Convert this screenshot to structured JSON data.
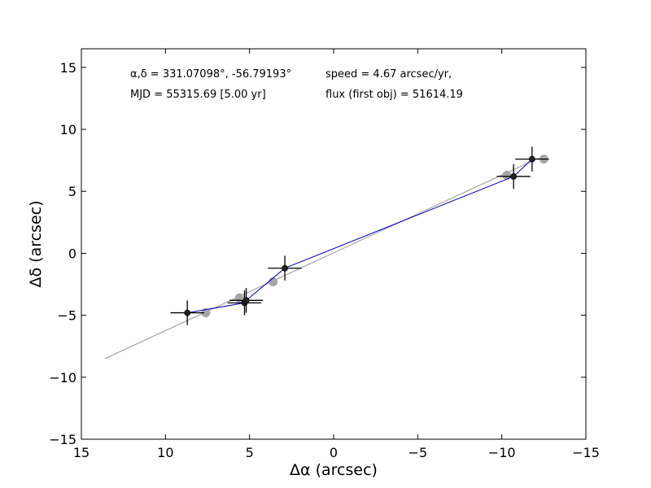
{
  "chart_data": {
    "type": "scatter",
    "title": "",
    "xlabel": "Δα (arcsec)",
    "ylabel": "Δδ (arcsec)",
    "xlim": [
      15,
      -15
    ],
    "ylim": [
      -15,
      16.5
    ],
    "xticks": [
      15,
      10,
      5,
      0,
      -5,
      -10,
      -15
    ],
    "xtick_labels": [
      "15",
      "10",
      "5",
      "0",
      "−5",
      "−10",
      "−15"
    ],
    "yticks": [
      -15,
      -10,
      -5,
      0,
      5,
      10,
      15
    ],
    "ytick_labels": [
      "−15",
      "−10",
      "−5",
      "0",
      "5",
      "10",
      "15"
    ],
    "grid": false,
    "annotations": {
      "coords": "α,δ = 331.07098°, -56.79193°",
      "mjd": "MJD = 55315.69 [5.00 yr]",
      "speed": "speed = 4.67 arcsec/yr,",
      "flux": "flux (first obj) = 51614.19"
    },
    "series": [
      {
        "name": "model_positions",
        "color": "#a6a6a6",
        "points": [
          [
            7.6,
            -4.8
          ],
          [
            5.6,
            -3.6
          ],
          [
            3.6,
            -2.3
          ],
          [
            -10.3,
            6.3
          ],
          [
            -12.5,
            7.6
          ]
        ]
      },
      {
        "name": "fit_line",
        "color": "#a6a6a6",
        "x": [
          13.6,
          -12.2
        ],
        "y": [
          -8.5,
          7.7
        ]
      },
      {
        "name": "observed",
        "color": "#0000cd",
        "points": [
          {
            "x": 8.7,
            "y": -4.8,
            "xerr": 1.0,
            "yerr": 1.0
          },
          {
            "x": 5.3,
            "y": -4.0,
            "xerr": 1.0,
            "yerr": 1.0
          },
          {
            "x": 5.2,
            "y": -3.8,
            "xerr": 1.0,
            "yerr": 1.0
          },
          {
            "x": 2.9,
            "y": -1.2,
            "xerr": 1.0,
            "yerr": 1.0
          },
          {
            "x": -10.7,
            "y": 6.2,
            "xerr": 1.0,
            "yerr": 1.0
          },
          {
            "x": -11.8,
            "y": 7.6,
            "xerr": 1.0,
            "yerr": 1.0
          }
        ]
      }
    ]
  }
}
